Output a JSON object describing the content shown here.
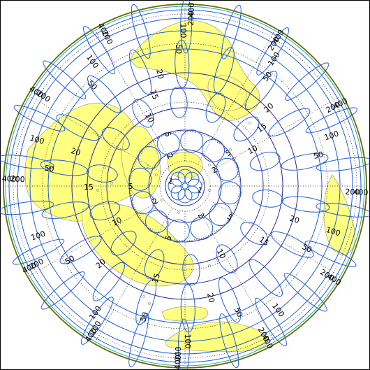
{
  "map": {
    "projection": "polar-azimuthal",
    "colors": {
      "land": "#ffff80",
      "coast": "#8a8a8a",
      "graticule": "#000000",
      "contour_outer": "#1f5fd6",
      "contour_inner": "#2b2b9e",
      "ellipse": "#1f5fd6",
      "frame_outer": "#6a6a00",
      "frame_cyan": "#22aaaa"
    },
    "contour_levels": [
      1,
      2,
      5,
      10,
      15,
      20,
      50,
      100,
      200,
      400
    ],
    "contour_labels": [
      {
        "text": "1"
      },
      {
        "text": "1"
      },
      {
        "text": "2"
      },
      {
        "text": "2"
      },
      {
        "text": "2"
      },
      {
        "text": "2"
      },
      {
        "text": "5"
      },
      {
        "text": "5"
      },
      {
        "text": "5"
      },
      {
        "text": "5"
      },
      {
        "text": "5"
      },
      {
        "text": "10"
      },
      {
        "text": "10"
      },
      {
        "text": "10"
      },
      {
        "text": "10"
      },
      {
        "text": "15"
      },
      {
        "text": "15"
      },
      {
        "text": "15"
      },
      {
        "text": "15"
      },
      {
        "text": "15"
      },
      {
        "text": "20"
      },
      {
        "text": "20"
      },
      {
        "text": "20"
      },
      {
        "text": "20"
      },
      {
        "text": "20"
      },
      {
        "text": "20"
      },
      {
        "text": "50"
      },
      {
        "text": "50"
      },
      {
        "text": "50"
      },
      {
        "text": "50"
      },
      {
        "text": "50"
      },
      {
        "text": "50"
      },
      {
        "text": "50"
      },
      {
        "text": "50"
      },
      {
        "text": "50"
      },
      {
        "text": "100"
      },
      {
        "text": "100"
      },
      {
        "text": "100"
      },
      {
        "text": "100"
      },
      {
        "text": "100"
      },
      {
        "text": "100"
      },
      {
        "text": "100"
      },
      {
        "text": "100"
      },
      {
        "text": "100"
      },
      {
        "text": "100"
      },
      {
        "text": "200"
      },
      {
        "text": "200"
      },
      {
        "text": "200"
      },
      {
        "text": "200"
      },
      {
        "text": "200"
      },
      {
        "text": "200"
      },
      {
        "text": "200"
      },
      {
        "text": "200"
      },
      {
        "text": "200"
      },
      {
        "text": "200"
      },
      {
        "text": "200"
      },
      {
        "text": "200"
      },
      {
        "text": "400"
      },
      {
        "text": "400"
      },
      {
        "text": "400"
      },
      {
        "text": "400"
      },
      {
        "text": "400"
      },
      {
        "text": "400"
      },
      {
        "text": "400"
      },
      {
        "text": "400"
      },
      {
        "text": "400"
      },
      {
        "text": "400"
      },
      {
        "text": "400"
      },
      {
        "text": "400"
      }
    ]
  }
}
